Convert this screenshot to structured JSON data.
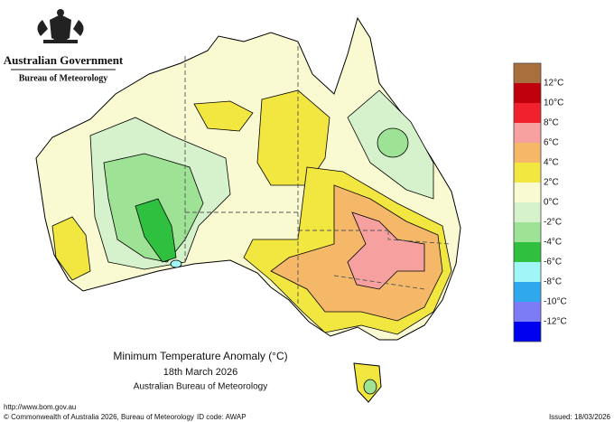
{
  "header": {
    "title": "Australian Government",
    "subtitle": "Bureau of Meteorology"
  },
  "map": {
    "title": "Minimum Temperature Anomaly (°C)",
    "date": "18th March 2026",
    "source": "Australian Bureau of Meteorology"
  },
  "legend": {
    "colors": [
      "#a8703c",
      "#c0000c",
      "#f0202c",
      "#f6a0a0",
      "#f4b868",
      "#f2e640",
      "#fafad2",
      "#d6f2cc",
      "#9ee296",
      "#30c040",
      "#a0f6f6",
      "#30a8ee",
      "#7c7cf6",
      "#0000f0"
    ],
    "labels": [
      "12°C",
      "10°C",
      "8°C",
      "6°C",
      "4°C",
      "2°C",
      "0°C",
      "-2°C",
      "-4°C",
      "-6°C",
      "-8°C",
      "-10°C",
      "-12°C"
    ]
  },
  "footer": {
    "url": "http://www.bom.gov.au",
    "copyright": "© Commonwealth of Australia 2026, Bureau of Meteorology",
    "id_code": "ID code: AWAP",
    "issued": "Issued: 18/03/2026"
  }
}
